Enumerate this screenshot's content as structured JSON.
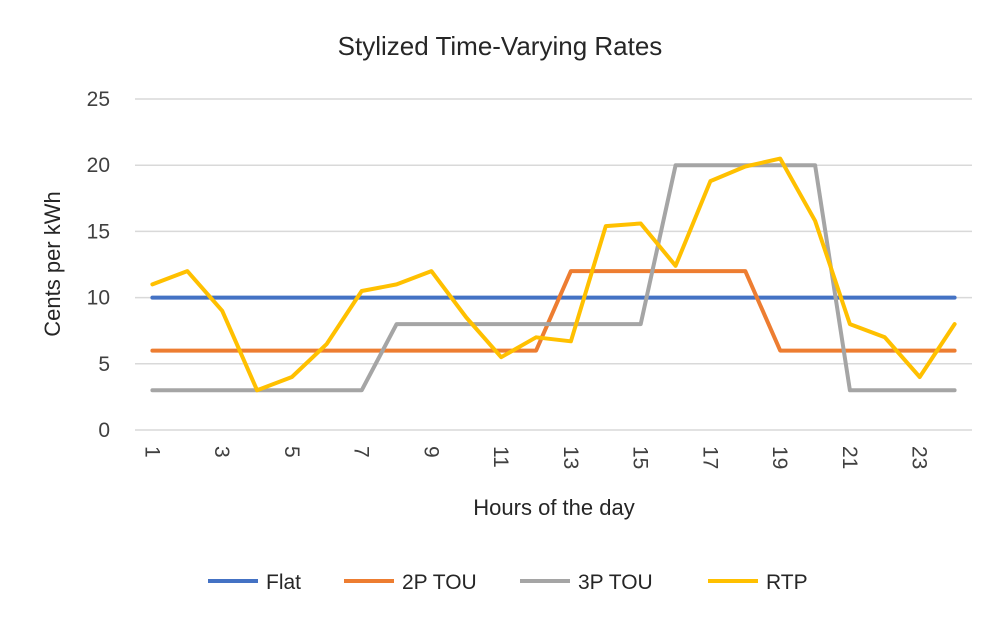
{
  "chart_data": {
    "type": "line",
    "title": "Stylized Time-Varying Rates",
    "xlabel": "Hours of the day",
    "ylabel": "Cents per kWh",
    "x": [
      1,
      2,
      3,
      4,
      5,
      6,
      7,
      8,
      9,
      10,
      11,
      12,
      13,
      14,
      15,
      16,
      17,
      18,
      19,
      20,
      21,
      22,
      23,
      24
    ],
    "x_tick_labels": [
      "1",
      "3",
      "5",
      "7",
      "9",
      "11",
      "13",
      "15",
      "17",
      "19",
      "21",
      "23"
    ],
    "ylim": [
      0,
      25
    ],
    "y_ticks": [
      0,
      5,
      10,
      15,
      20,
      25
    ],
    "grid": true,
    "legend_position": "bottom",
    "series": [
      {
        "name": "Flat",
        "color": "#4472C4",
        "values": [
          10,
          10,
          10,
          10,
          10,
          10,
          10,
          10,
          10,
          10,
          10,
          10,
          10,
          10,
          10,
          10,
          10,
          10,
          10,
          10,
          10,
          10,
          10,
          10
        ]
      },
      {
        "name": "2P TOU",
        "color": "#ED7D31",
        "values": [
          6,
          6,
          6,
          6,
          6,
          6,
          6,
          6,
          6,
          6,
          6,
          6,
          12,
          12,
          12,
          12,
          12,
          12,
          6,
          6,
          6,
          6,
          6,
          6
        ]
      },
      {
        "name": "3P TOU",
        "color": "#A5A5A5",
        "values": [
          3,
          3,
          3,
          3,
          3,
          3,
          3,
          8,
          8,
          8,
          8,
          8,
          8,
          8,
          8,
          20,
          20,
          20,
          20,
          20,
          3,
          3,
          3,
          3
        ]
      },
      {
        "name": "RTP",
        "color": "#FFC000",
        "values": [
          11,
          12,
          9,
          3,
          4,
          6.5,
          10.5,
          11,
          12,
          8.5,
          5.5,
          7,
          6.7,
          15.4,
          15.6,
          12.4,
          18.8,
          19.9,
          20.5,
          15.8,
          8,
          7,
          4,
          8
        ]
      }
    ]
  }
}
